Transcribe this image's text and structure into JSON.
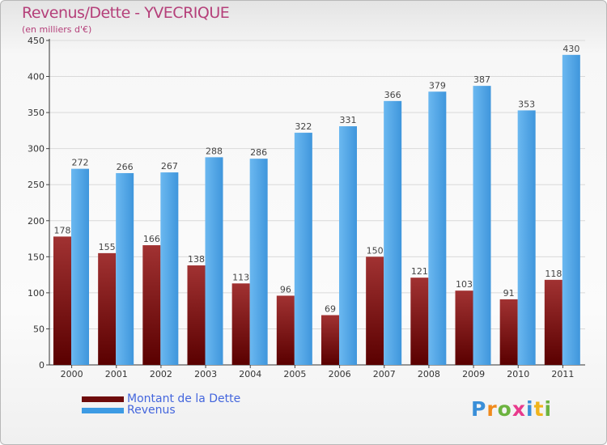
{
  "header": {
    "title": "Revenus/Dette - YVECRIQUE",
    "subtitle": "(en milliers d'€)"
  },
  "chart_data": {
    "type": "bar",
    "title": "Revenus/Dette - YVECRIQUE",
    "subtitle": "(en milliers d'€)",
    "xlabel": "",
    "ylabel": "",
    "ylim": [
      0,
      450
    ],
    "yticks": [
      0,
      50,
      100,
      150,
      200,
      250,
      300,
      350,
      400,
      450
    ],
    "grid": true,
    "categories": [
      "2000",
      "2001",
      "2002",
      "2003",
      "2004",
      "2005",
      "2006",
      "2007",
      "2008",
      "2009",
      "2010",
      "2011"
    ],
    "series": [
      {
        "name": "Montant de la Dette",
        "color": "#7a1212",
        "values": [
          178,
          155,
          166,
          138,
          113,
          96,
          69,
          150,
          121,
          103,
          91,
          118
        ]
      },
      {
        "name": "Revenus",
        "color": "#4aa3e6",
        "values": [
          272,
          266,
          267,
          288,
          286,
          322,
          331,
          366,
          379,
          387,
          353,
          430
        ]
      }
    ],
    "legend_position": "bottom-left"
  },
  "legend": {
    "items": [
      {
        "label": "Montant de la Dette",
        "color": "#6e0b0b"
      },
      {
        "label": "Revenus",
        "color": "#3d9be4"
      }
    ]
  },
  "logo": {
    "text": "Proxiti",
    "colors": [
      "#3a8fd8",
      "#f08a1c",
      "#6cb33f",
      "#e83a8c",
      "#3a8fd8",
      "#f0b41c",
      "#6cb33f"
    ]
  }
}
